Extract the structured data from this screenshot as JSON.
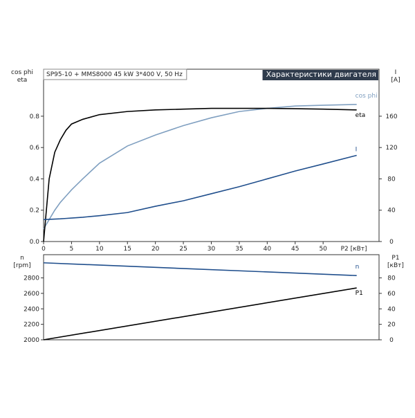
{
  "chart_data": [
    {
      "type": "line",
      "title": "SP95-10 + MMS8000  45 kW  3*400 V, 50 Hz",
      "subtitle": "Характеристики двигателя",
      "ylabel": [
        "cos phi",
        "eta"
      ],
      "y2label": [
        "I",
        "[A]"
      ],
      "xlabel": "P2 [кВт]",
      "x": [
        0,
        1,
        2,
        3,
        4,
        5,
        7,
        10,
        15,
        20,
        25,
        30,
        35,
        40,
        45,
        50,
        56
      ],
      "series": [
        {
          "name": "cos phi",
          "color": "#7f9fc0",
          "values": [
            0.08,
            0.14,
            0.2,
            0.25,
            0.29,
            0.33,
            0.4,
            0.5,
            0.61,
            0.68,
            0.74,
            0.79,
            0.83,
            0.85,
            0.865,
            0.87,
            0.875
          ]
        },
        {
          "name": "eta",
          "color": "#000000",
          "values": [
            0,
            0.4,
            0.57,
            0.65,
            0.71,
            0.75,
            0.78,
            0.81,
            0.83,
            0.84,
            0.845,
            0.85,
            0.85,
            0.85,
            0.848,
            0.845,
            0.84
          ]
        },
        {
          "name": "I",
          "color": "#1f4e8c",
          "axis": "y2",
          "values": [
            28,
            28.3,
            28.7,
            29,
            29.5,
            30,
            31,
            33,
            37,
            45,
            52,
            61,
            70,
            80,
            90,
            99,
            110
          ]
        }
      ],
      "xlim": [
        0,
        60
      ],
      "xticks": [
        0,
        5,
        10,
        15,
        20,
        25,
        30,
        35,
        40,
        45,
        50
      ],
      "ylim": [
        0,
        1.1
      ],
      "yticks": [
        {
          "value": 0,
          "label": "0.0"
        },
        0.2,
        0.4,
        0.6,
        0.8
      ],
      "y2lim": [
        0,
        220
      ],
      "y2ticks": [
        0,
        40,
        80,
        120,
        160
      ]
    },
    {
      "type": "line",
      "ylabel": [
        "n",
        "[rpm]"
      ],
      "y2label": [
        "P1",
        "[кВт]"
      ],
      "x": [
        0,
        56
      ],
      "series": [
        {
          "name": "n",
          "color": "#1f4e8c",
          "values": [
            2995,
            2830
          ]
        },
        {
          "name": "P1",
          "color": "#000000",
          "axis": "y2",
          "values": [
            0,
            67
          ]
        }
      ],
      "xlim": [
        0,
        60
      ],
      "ylim": [
        2000,
        3100
      ],
      "yticks": [
        2000,
        2200,
        2400,
        2600,
        2800
      ],
      "y2lim": [
        0,
        110
      ],
      "y2ticks": [
        0,
        20,
        40,
        60,
        80
      ]
    }
  ]
}
